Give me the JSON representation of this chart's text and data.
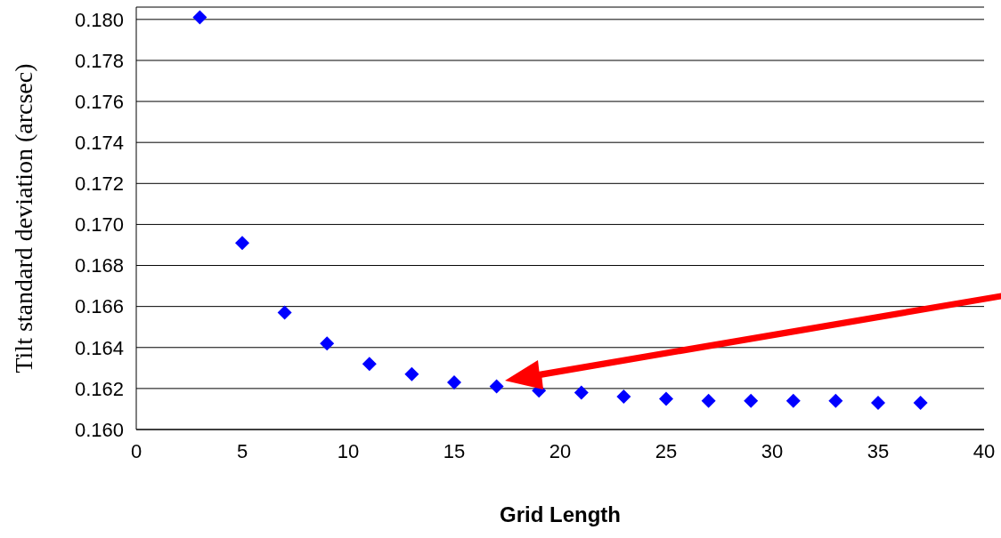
{
  "chart_data": {
    "type": "scatter",
    "xlabel": "Grid Length",
    "ylabel": "Tilt standard deviation (arcsec)",
    "x": [
      3,
      5,
      7,
      9,
      11,
      13,
      15,
      17,
      19,
      21,
      23,
      25,
      27,
      29,
      31,
      33,
      35,
      37
    ],
    "values": [
      0.1801,
      0.1691,
      0.1657,
      0.1642,
      0.1632,
      0.1627,
      0.1623,
      0.1621,
      0.1619,
      0.1618,
      0.1616,
      0.1615,
      0.1614,
      0.1614,
      0.1614,
      0.1614,
      0.1613,
      0.1613
    ],
    "color": "#0000ff",
    "marker": "diamond",
    "grid": "y",
    "xlim": [
      0,
      40
    ],
    "xticks": [
      0,
      5,
      10,
      15,
      20,
      25,
      30,
      35,
      40
    ],
    "ylim": [
      0.16,
      0.1806
    ],
    "yticks": [
      {
        "value": 0.16,
        "label": "0.160"
      },
      {
        "value": 0.162,
        "label": "0.162"
      },
      {
        "value": 0.164,
        "label": "0.164"
      },
      {
        "value": 0.166,
        "label": "0.166"
      },
      {
        "value": 0.168,
        "label": "0.168"
      },
      {
        "value": 0.17,
        "label": "0.170"
      },
      {
        "value": 0.172,
        "label": "0.172"
      },
      {
        "value": 0.174,
        "label": "0.174"
      },
      {
        "value": 0.176,
        "label": "0.176"
      },
      {
        "value": 0.178,
        "label": "0.178"
      },
      {
        "value": 0.18,
        "label": "0.180"
      }
    ]
  }
}
